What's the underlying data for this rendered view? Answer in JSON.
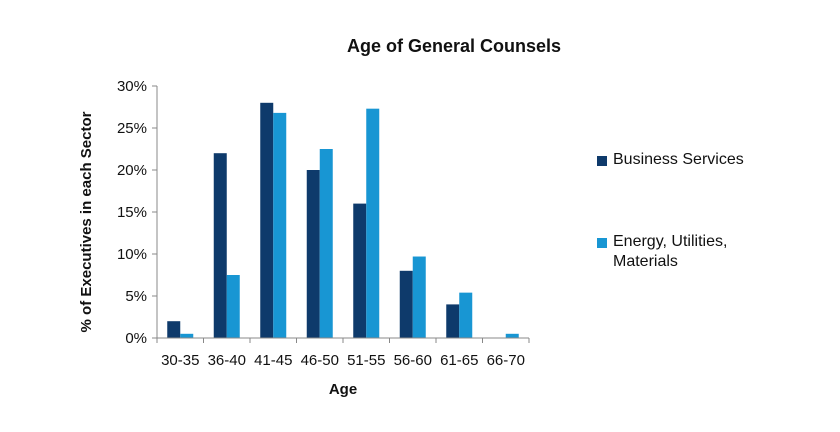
{
  "chart_data": {
    "type": "bar",
    "title": "Age of General Counsels",
    "xlabel": "Age",
    "ylabel": "% of Executives in each Sector",
    "categories": [
      "30-35",
      "36-40",
      "41-45",
      "46-50",
      "51-55",
      "56-60",
      "61-65",
      "66-70"
    ],
    "series": [
      {
        "name": "Business Services",
        "color": "#0e3a6b",
        "values": [
          2,
          22,
          28,
          20,
          16,
          8,
          4,
          0
        ]
      },
      {
        "name": "Energy, Utilities, Materials",
        "color": "#1896d3",
        "values": [
          0.5,
          7.5,
          26.8,
          22.5,
          27.3,
          9.7,
          5.4,
          0.5
        ]
      }
    ],
    "ylim": [
      0,
      30
    ],
    "yticks": [
      0,
      5,
      10,
      15,
      20,
      25,
      30
    ],
    "ytick_labels": [
      "0%",
      "5%",
      "10%",
      "15%",
      "20%",
      "25%",
      "30%"
    ],
    "grid": false,
    "legend_position": "right"
  }
}
